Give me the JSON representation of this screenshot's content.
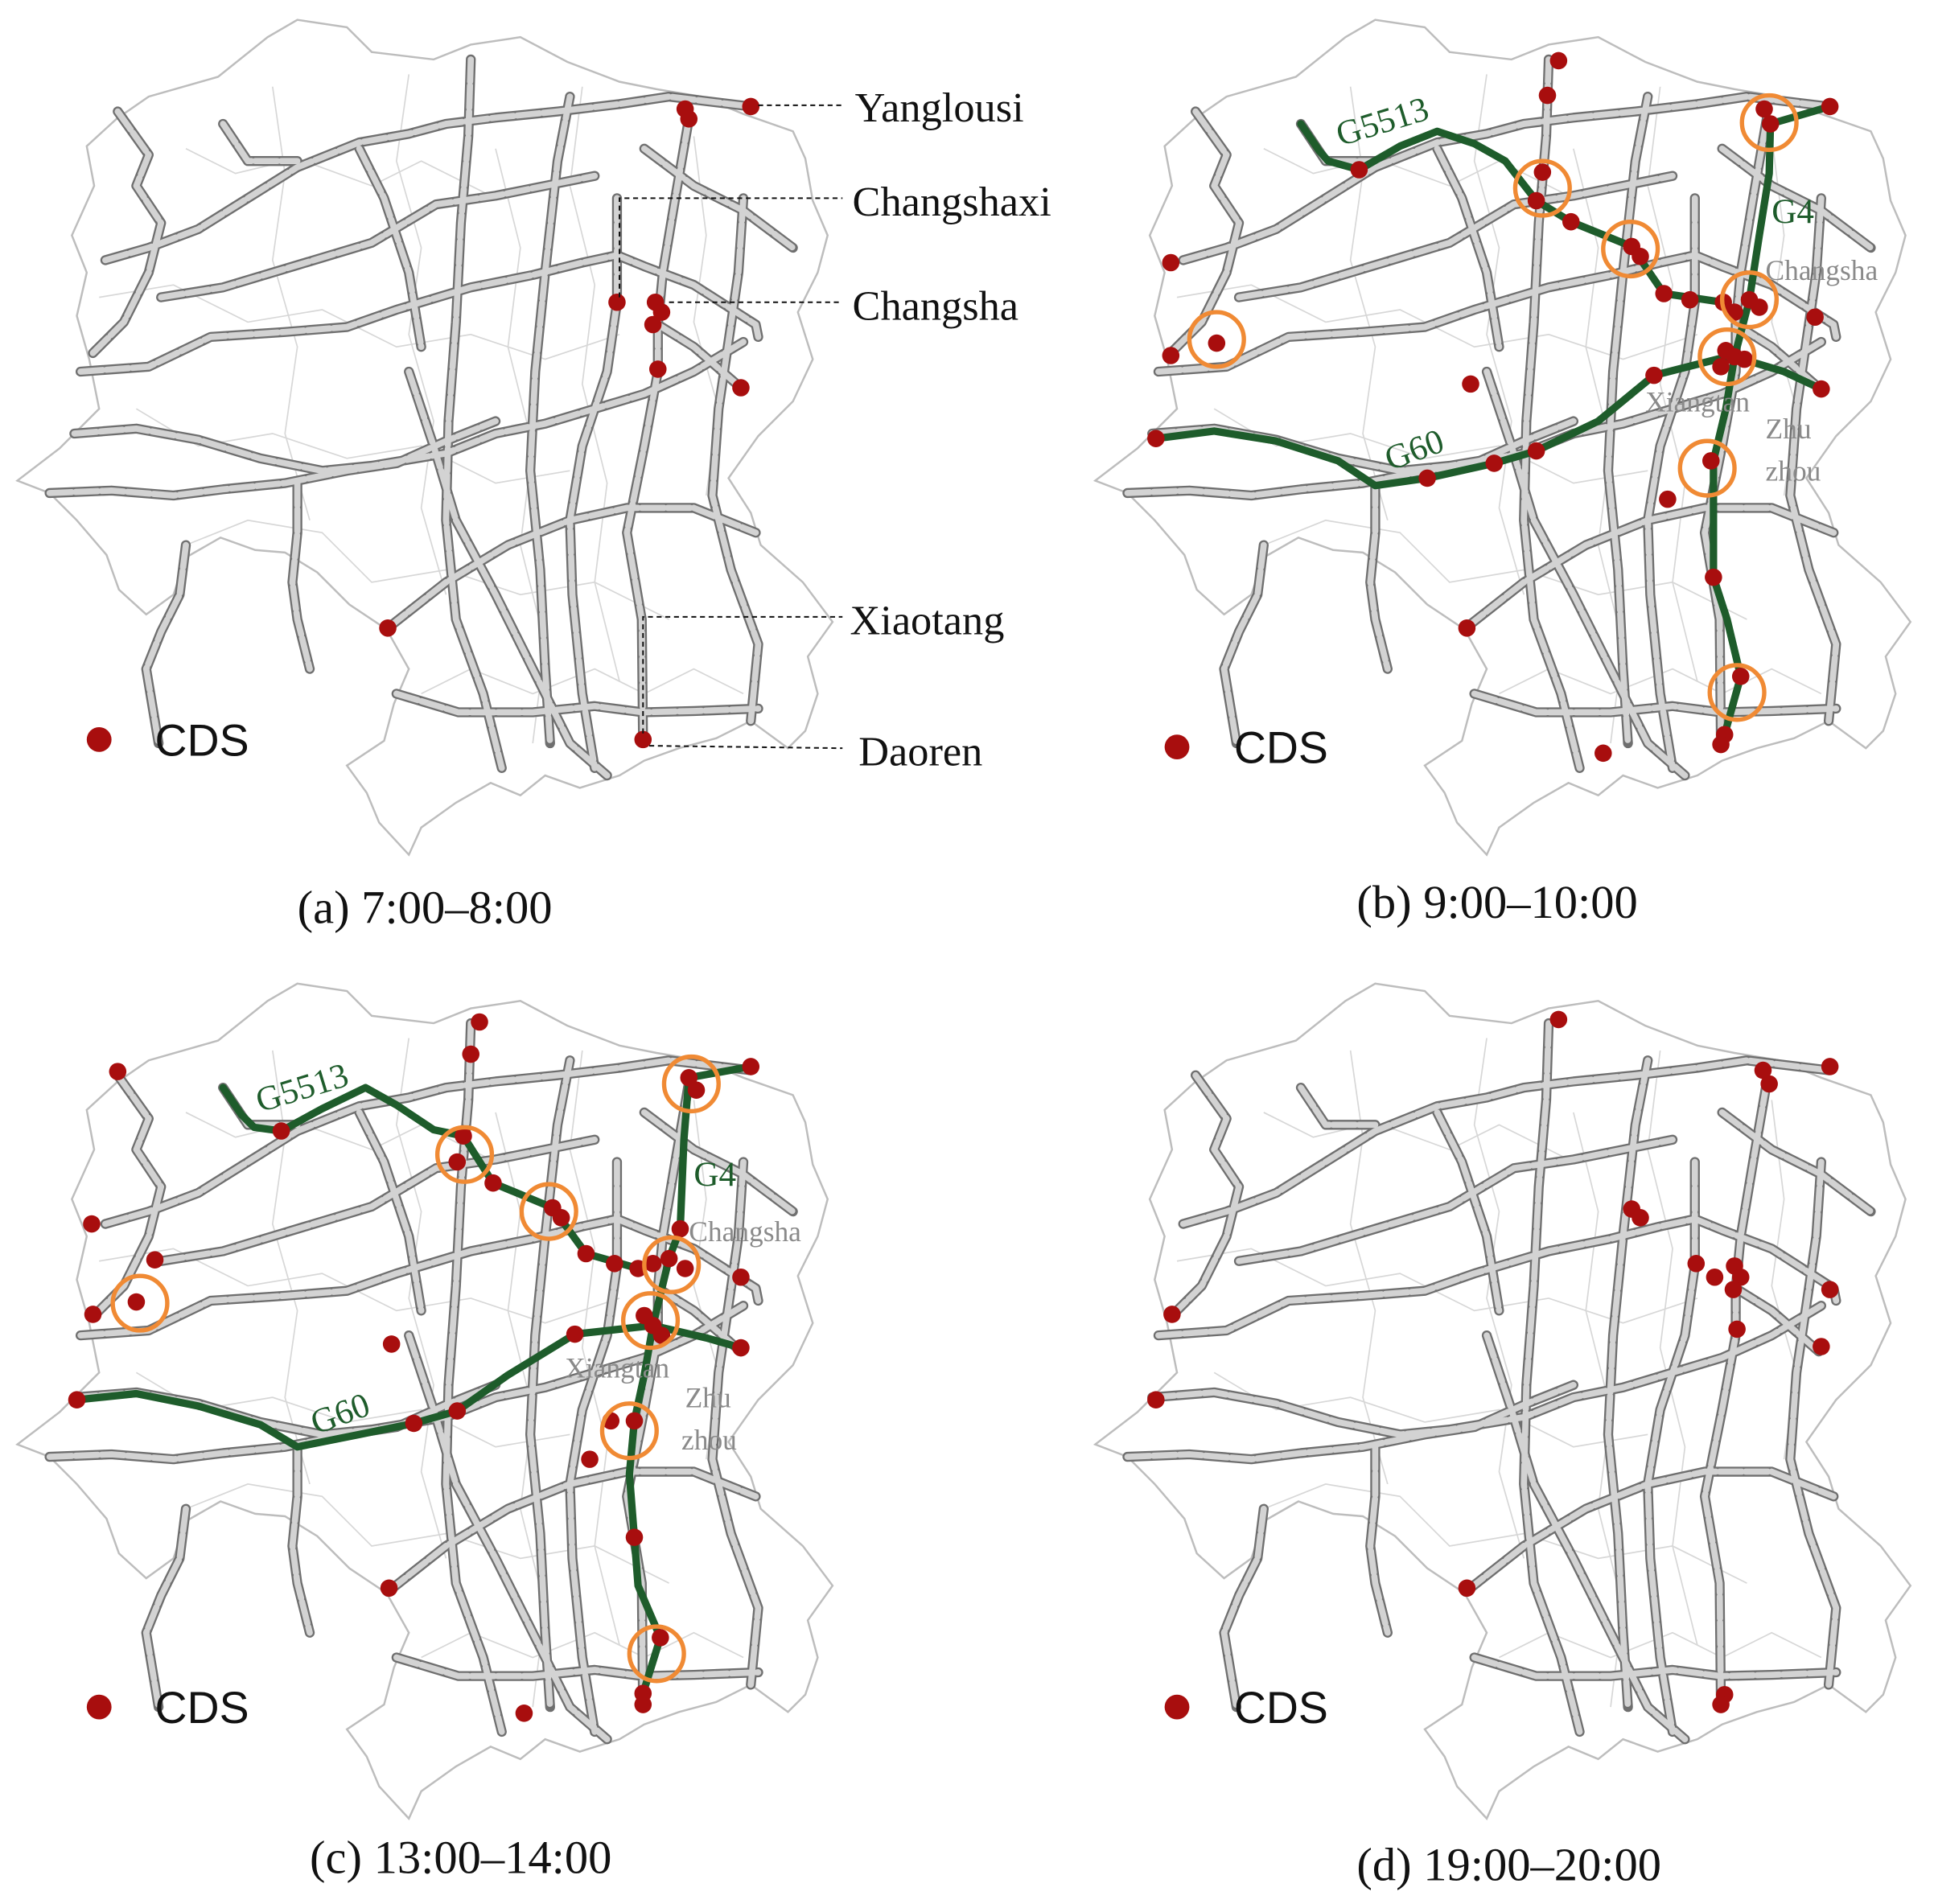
{
  "panels": [
    {
      "id": "a",
      "caption": "(a) 7:00–8:00",
      "legend_label": "CDS",
      "routes": [],
      "cds_points": [
        [
          553,
          88
        ],
        [
          556,
          96
        ],
        [
          606,
          86
        ],
        [
          498,
          244
        ],
        [
          529,
          244
        ],
        [
          534,
          252
        ],
        [
          527,
          262
        ],
        [
          531,
          298
        ],
        [
          598,
          313
        ],
        [
          313,
          507
        ],
        [
          519,
          597
        ]
      ],
      "circles": [],
      "callouts": [
        {
          "label": "Yanglousi"
        },
        {
          "label": "Changshaxi"
        },
        {
          "label": "Changsha"
        },
        {
          "label": "Xiaotang"
        },
        {
          "label": "Daoren"
        }
      ],
      "route_labels": [],
      "city_labels": []
    },
    {
      "id": "b",
      "caption": "(b) 9:00–10:00",
      "legend_label": "CDS",
      "routes": [
        "G5513",
        "G4",
        "G60"
      ],
      "cds_points": [
        [
          1258,
          49
        ],
        [
          1249,
          77
        ],
        [
          1424,
          88
        ],
        [
          1429,
          100
        ],
        [
          1477,
          86
        ],
        [
          1097,
          137
        ],
        [
          1245,
          139
        ],
        [
          1240,
          162
        ],
        [
          1268,
          179
        ],
        [
          1317,
          199
        ],
        [
          1324,
          207
        ],
        [
          1343,
          237
        ],
        [
          1364,
          242
        ],
        [
          1391,
          244
        ],
        [
          1400,
          252
        ],
        [
          1412,
          242
        ],
        [
          1420,
          248
        ],
        [
          1393,
          283
        ],
        [
          1400,
          288
        ],
        [
          1389,
          296
        ],
        [
          1408,
          290
        ],
        [
          1465,
          256
        ],
        [
          945,
          212
        ],
        [
          982,
          277
        ],
        [
          945,
          287
        ],
        [
          933,
          354
        ],
        [
          1187,
          310
        ],
        [
          1335,
          303
        ],
        [
          1470,
          314
        ],
        [
          1240,
          364
        ],
        [
          1206,
          374
        ],
        [
          1152,
          386
        ],
        [
          1381,
          372
        ],
        [
          1346,
          403
        ],
        [
          1383,
          466
        ],
        [
          1184,
          507
        ],
        [
          1405,
          546
        ],
        [
          1392,
          593
        ],
        [
          1389,
          601
        ],
        [
          1294,
          608
        ]
      ],
      "circles": [
        [
          1428,
          99
        ],
        [
          1245,
          152
        ],
        [
          1316,
          201
        ],
        [
          1412,
          242
        ],
        [
          1394,
          288
        ],
        [
          982,
          274
        ],
        [
          1378,
          378
        ],
        [
          1402,
          559
        ]
      ],
      "callouts": [],
      "route_labels": [
        {
          "text": "G5513",
          "rotate": -17
        },
        {
          "text": "G4",
          "rotate": 0
        },
        {
          "text": "G60",
          "rotate": -20
        }
      ],
      "city_labels": [
        {
          "text": "Changsha"
        },
        {
          "text": "Xiangtan"
        },
        {
          "text": "Zhu"
        },
        {
          "text": "zhou"
        }
      ]
    },
    {
      "id": "c",
      "caption": "(c) 13:00–14:00",
      "legend_label": "CDS",
      "routes": [
        "G5513",
        "G4",
        "G60"
      ],
      "cds_points": [
        [
          387,
          825
        ],
        [
          380,
          851
        ],
        [
          556,
          870
        ],
        [
          562,
          880
        ],
        [
          606,
          861
        ],
        [
          95,
          865
        ],
        [
          227,
          913
        ],
        [
          374,
          917
        ],
        [
          369,
          938
        ],
        [
          398,
          955
        ],
        [
          446,
          975
        ],
        [
          453,
          983
        ],
        [
          473,
          1012
        ],
        [
          496,
          1020
        ],
        [
          515,
          1024
        ],
        [
          527,
          1020
        ],
        [
          540,
          1016
        ],
        [
          553,
          1024
        ],
        [
          549,
          992
        ],
        [
          520,
          1062
        ],
        [
          527,
          1070
        ],
        [
          534,
          1078
        ],
        [
          598,
          1031
        ],
        [
          74,
          988
        ],
        [
          125,
          1017
        ],
        [
          110,
          1051
        ],
        [
          75,
          1061
        ],
        [
          316,
          1085
        ],
        [
          464,
          1077
        ],
        [
          598,
          1088
        ],
        [
          62,
          1130
        ],
        [
          369,
          1139
        ],
        [
          334,
          1149
        ],
        [
          512,
          1147
        ],
        [
          493,
          1147
        ],
        [
          476,
          1178
        ],
        [
          512,
          1241
        ],
        [
          314,
          1282
        ],
        [
          533,
          1322
        ],
        [
          519,
          1367
        ],
        [
          519,
          1376
        ],
        [
          423,
          1383
        ]
      ],
      "circles": [
        [
          558,
          875
        ],
        [
          375,
          932
        ],
        [
          443,
          978
        ],
        [
          542,
          1021
        ],
        [
          525,
          1066
        ],
        [
          113,
          1052
        ],
        [
          508,
          1155
        ],
        [
          530,
          1335
        ]
      ],
      "callouts": [],
      "route_labels": [
        {
          "text": "G5513",
          "rotate": -17
        },
        {
          "text": "G4",
          "rotate": 0
        },
        {
          "text": "G60",
          "rotate": -20
        }
      ],
      "city_labels": [
        {
          "text": "Changsha"
        },
        {
          "text": "Xiangtan"
        },
        {
          "text": "Zhu"
        },
        {
          "text": "zhou"
        }
      ]
    },
    {
      "id": "d",
      "caption": "(d) 19:00–20:00",
      "legend_label": "CDS",
      "routes": [],
      "cds_points": [
        [
          1258,
          823
        ],
        [
          1423,
          864
        ],
        [
          1428,
          875
        ],
        [
          1477,
          861
        ],
        [
          1317,
          976
        ],
        [
          1324,
          983
        ],
        [
          1369,
          1020
        ],
        [
          1384,
          1031
        ],
        [
          1400,
          1022
        ],
        [
          1405,
          1031
        ],
        [
          1399,
          1041
        ],
        [
          1477,
          1041
        ],
        [
          1402,
          1073
        ],
        [
          1470,
          1087
        ],
        [
          946,
          1061
        ],
        [
          933,
          1130
        ],
        [
          1184,
          1282
        ],
        [
          1392,
          1368
        ],
        [
          1389,
          1376
        ]
      ],
      "circles": [],
      "callouts": [],
      "route_labels": [],
      "city_labels": []
    }
  ],
  "colors": {
    "cds": "#a80e0e",
    "road": "#bdbdbd",
    "road_edge": "#6f6f6f",
    "route": "#1e5c2b",
    "circle": "#f08a34",
    "boundary": "#c8c8c8"
  }
}
